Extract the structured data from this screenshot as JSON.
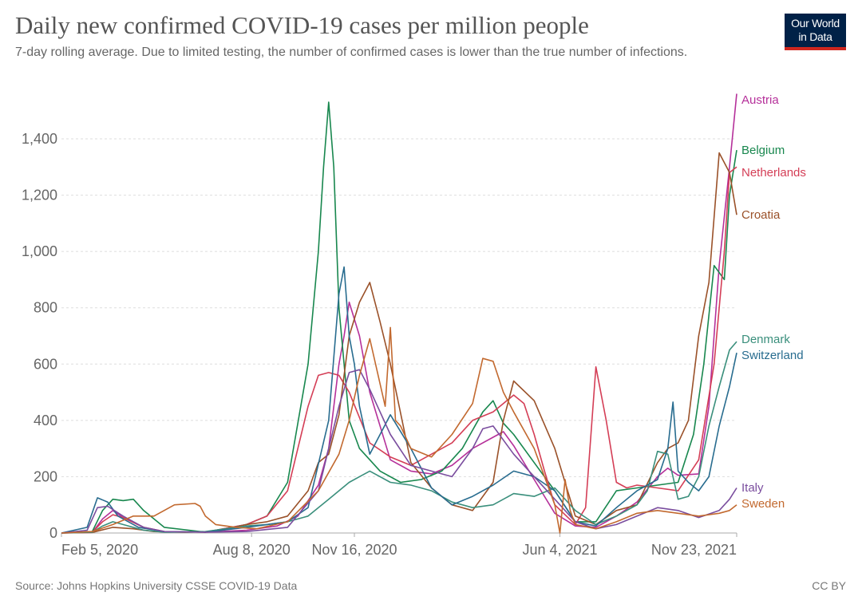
{
  "header": {
    "title": "Daily new confirmed COVID-19 cases per million people",
    "subtitle": "7-day rolling average. Due to limited testing, the number of confirmed cases is lower than the true number of infections.",
    "logo_line1": "Our World",
    "logo_line2": "in Data"
  },
  "footer": {
    "source": "Source: Johns Hopkins University CSSE COVID-19 Data",
    "license": "CC BY"
  },
  "chart_data": {
    "type": "line",
    "title": "Daily new confirmed COVID-19 cases per million people",
    "subtitle": "7-day rolling average. Due to limited testing, the number of confirmed cases is lower than the true number of infections.",
    "xlabel": "",
    "ylabel": "",
    "x_unit": "days since Feb 5, 2020",
    "xlim": [
      0,
      657
    ],
    "ylim": [
      0,
      1500
    ],
    "grid": "horizontal-dashed",
    "legend": "inline-right",
    "x_ticks": [
      {
        "day": 0,
        "label": "Feb 5, 2020"
      },
      {
        "day": 185,
        "label": "Aug 8, 2020"
      },
      {
        "day": 285,
        "label": "Nov 16, 2020"
      },
      {
        "day": 485,
        "label": "Jun 4, 2021"
      },
      {
        "day": 657,
        "label": "Nov 23, 2021"
      }
    ],
    "y_ticks": [
      {
        "value": 0,
        "label": "0"
      },
      {
        "value": 200,
        "label": "200"
      },
      {
        "value": 400,
        "label": "400"
      },
      {
        "value": 600,
        "label": "600"
      },
      {
        "value": 800,
        "label": "800"
      },
      {
        "value": 1000,
        "label": "1,000"
      },
      {
        "value": 1200,
        "label": "1,200"
      },
      {
        "value": 1400,
        "label": "1,400"
      }
    ],
    "series": [
      {
        "name": "Austria",
        "color": "#b5309a",
        "label_value": 1540,
        "x": [
          0,
          30,
          40,
          50,
          60,
          80,
          100,
          140,
          180,
          210,
          230,
          250,
          260,
          270,
          275,
          280,
          290,
          300,
          320,
          340,
          360,
          380,
          400,
          420,
          430,
          440,
          460,
          480,
          500,
          520,
          540,
          560,
          580,
          590,
          600,
          620,
          630,
          640,
          650,
          657
        ],
        "y": [
          0,
          2,
          50,
          80,
          55,
          20,
          5,
          3,
          10,
          25,
          60,
          170,
          300,
          600,
          700,
          820,
          700,
          500,
          260,
          220,
          210,
          240,
          300,
          340,
          360,
          310,
          190,
          70,
          25,
          20,
          60,
          110,
          200,
          230,
          205,
          210,
          450,
          950,
          1300,
          1560
        ]
      },
      {
        "name": "Belgium",
        "color": "#18874e",
        "label_value": 1360,
        "x": [
          0,
          30,
          40,
          50,
          60,
          70,
          80,
          100,
          140,
          180,
          200,
          220,
          240,
          250,
          255,
          260,
          265,
          270,
          280,
          290,
          310,
          330,
          350,
          370,
          390,
          410,
          420,
          430,
          440,
          460,
          480,
          500,
          520,
          540,
          560,
          580,
          600,
          615,
          625,
          635,
          645,
          650,
          657
        ],
        "y": [
          0,
          5,
          80,
          120,
          115,
          120,
          80,
          20,
          3,
          30,
          60,
          180,
          600,
          1000,
          1300,
          1530,
          1300,
          800,
          400,
          300,
          220,
          180,
          190,
          220,
          300,
          430,
          470,
          390,
          350,
          250,
          150,
          40,
          40,
          150,
          160,
          170,
          180,
          350,
          600,
          950,
          900,
          1200,
          1360
        ]
      },
      {
        "name": "Netherlands",
        "color": "#d43e56",
        "label_value": 1280,
        "x": [
          0,
          30,
          40,
          50,
          60,
          80,
          100,
          140,
          180,
          200,
          220,
          240,
          250,
          260,
          270,
          280,
          300,
          320,
          340,
          360,
          380,
          400,
          420,
          440,
          450,
          460,
          470,
          480,
          500,
          510,
          520,
          530,
          540,
          550,
          560,
          580,
          600,
          620,
          635,
          645,
          650,
          657
        ],
        "y": [
          0,
          3,
          40,
          65,
          55,
          20,
          5,
          3,
          30,
          60,
          150,
          450,
          560,
          570,
          560,
          500,
          320,
          270,
          240,
          280,
          320,
          400,
          430,
          490,
          460,
          350,
          220,
          100,
          30,
          90,
          590,
          400,
          180,
          160,
          170,
          160,
          150,
          260,
          600,
          1000,
          1280,
          1300
        ]
      },
      {
        "name": "Croatia",
        "color": "#9a5129",
        "label_value": 1130,
        "x": [
          0,
          30,
          50,
          70,
          90,
          120,
          150,
          180,
          200,
          220,
          240,
          250,
          260,
          270,
          280,
          290,
          300,
          310,
          320,
          340,
          360,
          380,
          400,
          420,
          430,
          440,
          460,
          480,
          500,
          520,
          540,
          560,
          580,
          590,
          600,
          610,
          620,
          630,
          640,
          650,
          657
        ],
        "y": [
          0,
          2,
          20,
          15,
          5,
          3,
          5,
          30,
          40,
          60,
          150,
          250,
          280,
          420,
          700,
          820,
          890,
          750,
          600,
          250,
          160,
          100,
          80,
          180,
          400,
          540,
          470,
          300,
          60,
          30,
          80,
          100,
          250,
          300,
          320,
          400,
          700,
          890,
          1350,
          1280,
          1130
        ]
      },
      {
        "name": "Denmark",
        "color": "#3a8f7c",
        "label_value": 680,
        "x": [
          0,
          30,
          40,
          50,
          60,
          80,
          100,
          140,
          180,
          200,
          220,
          240,
          260,
          280,
          290,
          300,
          320,
          340,
          360,
          380,
          400,
          420,
          440,
          460,
          480,
          500,
          520,
          540,
          560,
          570,
          580,
          590,
          600,
          610,
          620,
          630,
          640,
          650,
          657
        ],
        "y": [
          0,
          3,
          25,
          40,
          30,
          10,
          3,
          5,
          25,
          30,
          40,
          60,
          120,
          180,
          200,
          220,
          180,
          170,
          150,
          110,
          90,
          100,
          140,
          130,
          160,
          80,
          30,
          60,
          100,
          150,
          290,
          280,
          120,
          130,
          200,
          380,
          520,
          650,
          680
        ]
      },
      {
        "name": "Switzerland",
        "color": "#286c8f",
        "label_value": 640,
        "x": [
          0,
          25,
          35,
          45,
          55,
          75,
          100,
          140,
          180,
          200,
          220,
          240,
          260,
          270,
          275,
          280,
          285,
          290,
          300,
          320,
          340,
          360,
          380,
          400,
          420,
          440,
          460,
          480,
          500,
          520,
          540,
          560,
          580,
          590,
          595,
          600,
          610,
          620,
          630,
          640,
          650,
          657
        ],
        "y": [
          0,
          20,
          125,
          110,
          60,
          20,
          5,
          3,
          20,
          30,
          40,
          90,
          400,
          850,
          945,
          700,
          600,
          450,
          280,
          420,
          300,
          160,
          100,
          130,
          170,
          220,
          200,
          150,
          40,
          25,
          90,
          150,
          190,
          300,
          465,
          220,
          180,
          150,
          200,
          380,
          520,
          640
        ]
      },
      {
        "name": "Italy",
        "color": "#7a4d9e",
        "label_value": 160,
        "x": [
          0,
          25,
          35,
          45,
          60,
          80,
          100,
          140,
          180,
          220,
          250,
          270,
          280,
          290,
          300,
          320,
          340,
          360,
          380,
          400,
          410,
          420,
          440,
          460,
          480,
          500,
          520,
          540,
          560,
          580,
          600,
          620,
          640,
          650,
          657
        ],
        "y": [
          0,
          10,
          90,
          95,
          60,
          20,
          5,
          3,
          5,
          20,
          150,
          450,
          570,
          580,
          510,
          350,
          240,
          220,
          200,
          300,
          370,
          380,
          280,
          200,
          120,
          40,
          15,
          30,
          60,
          90,
          80,
          55,
          80,
          120,
          160
        ]
      },
      {
        "name": "Sweden",
        "color": "#c2692f",
        "label_value": 100,
        "x": [
          0,
          30,
          50,
          70,
          90,
          110,
          130,
          135,
          140,
          150,
          170,
          190,
          220,
          250,
          270,
          280,
          290,
          300,
          315,
          320,
          325,
          330,
          340,
          360,
          380,
          400,
          410,
          420,
          430,
          440,
          460,
          480,
          485,
          490,
          495,
          500,
          520,
          540,
          560,
          580,
          600,
          620,
          640,
          650,
          657
        ],
        "y": [
          0,
          5,
          30,
          60,
          60,
          100,
          105,
          95,
          60,
          30,
          20,
          15,
          40,
          150,
          280,
          400,
          560,
          690,
          450,
          730,
          400,
          380,
          300,
          270,
          350,
          460,
          620,
          610,
          500,
          430,
          300,
          100,
          0,
          190,
          80,
          30,
          15,
          40,
          70,
          80,
          70,
          60,
          70,
          80,
          100
        ]
      }
    ]
  }
}
